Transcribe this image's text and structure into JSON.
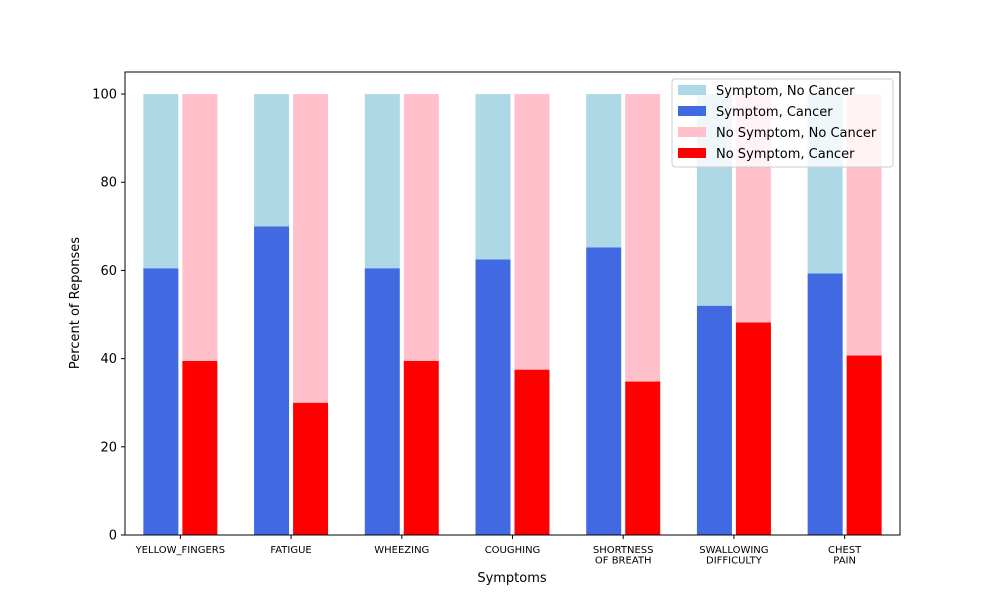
{
  "chart_data": {
    "type": "bar",
    "categories": [
      [
        "YELLOW_FINGERS"
      ],
      [
        "FATIGUE"
      ],
      [
        "WHEEZING"
      ],
      [
        "COUGHING"
      ],
      [
        "SHORTNESS",
        "OF BREATH"
      ],
      [
        "SWALLOWING",
        "DIFFICULTY"
      ],
      [
        "CHEST",
        "PAIN"
      ]
    ],
    "series": [
      {
        "name": "Symptom, No Cancer",
        "color": "#add8e6",
        "stack": "symptom",
        "values": [
          39.5,
          30.0,
          39.5,
          37.5,
          34.8,
          48.0,
          40.7
        ]
      },
      {
        "name": "Symptom, Cancer",
        "color": "#4169e1",
        "stack": "symptom",
        "values": [
          60.5,
          70.0,
          60.5,
          62.5,
          65.2,
          52.0,
          59.3
        ]
      },
      {
        "name": "No Symptom, No Cancer",
        "color": "#ffc0cb",
        "stack": "no_symptom",
        "values": [
          60.5,
          70.0,
          60.5,
          62.5,
          65.2,
          51.8,
          59.3
        ]
      },
      {
        "name": "No Symptom, Cancer",
        "color": "#ff0000",
        "stack": "no_symptom",
        "values": [
          39.5,
          30.0,
          39.5,
          37.5,
          34.8,
          48.2,
          40.7
        ]
      }
    ],
    "xlabel": "Symptoms",
    "ylabel": "Percent of Reponses",
    "ylim": [
      0,
      105
    ],
    "yticks": [
      "0",
      "20",
      "40",
      "60",
      "80",
      "100"
    ],
    "grid": false,
    "legend_position": "top-right"
  }
}
